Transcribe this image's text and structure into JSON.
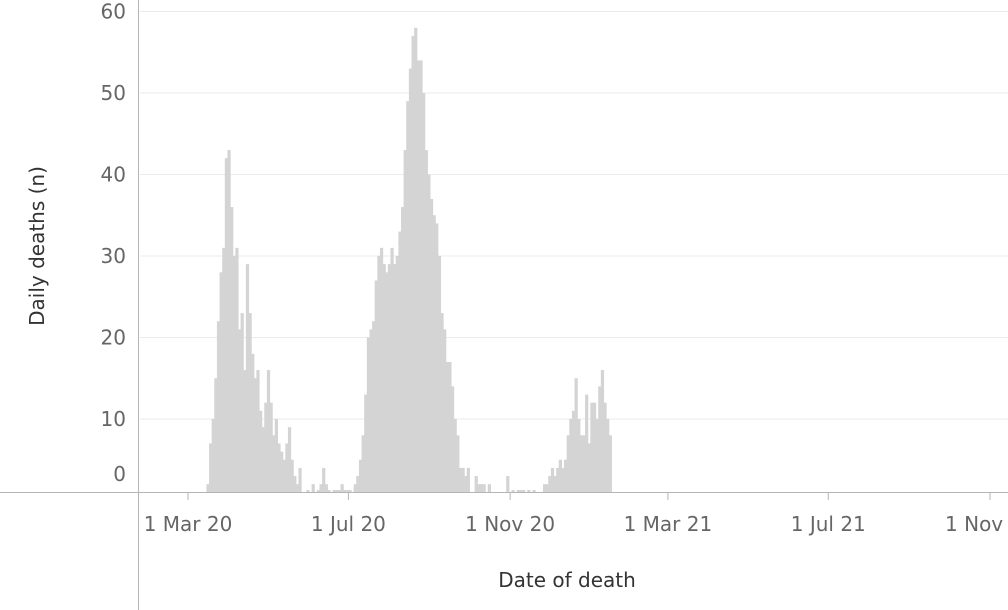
{
  "chart_data": {
    "type": "bar",
    "title": "",
    "xlabel": "Date of death",
    "ylabel": "Daily deaths (n)",
    "ylim": [
      0,
      60
    ],
    "y_ticks": [
      0,
      10,
      20,
      30,
      40,
      50,
      60
    ],
    "x_ticks": [
      {
        "date": "2020-03-01",
        "label": "1 Mar 20"
      },
      {
        "date": "2020-07-01",
        "label": "1 Jul 20"
      },
      {
        "date": "2020-11-01",
        "label": "1 Nov 20"
      },
      {
        "date": "2021-03-01",
        "label": "1 Mar 21"
      },
      {
        "date": "2021-07-01",
        "label": "1 Jul 21"
      },
      {
        "date": "2021-11-01",
        "label": "1 Nov 21"
      }
    ],
    "x_range": [
      "2020-02-01",
      "2021-12-01"
    ],
    "grid": "horizontal",
    "bar_color": "#d4d4d4",
    "series": [
      {
        "start_date": "2020-03-15",
        "interval_days": 2,
        "values": [
          2,
          7,
          10,
          15,
          22,
          28,
          31,
          42,
          43,
          36,
          30,
          31,
          21,
          23,
          16,
          29,
          23,
          18,
          15,
          16,
          11,
          9,
          12,
          16,
          12,
          8,
          10,
          7,
          6,
          5,
          7,
          9,
          5,
          3,
          2,
          4,
          1,
          1,
          0,
          1,
          2,
          1,
          0,
          2,
          4,
          2,
          0,
          1,
          0,
          0,
          0,
          2,
          0,
          0,
          0,
          1,
          2,
          3,
          5,
          8,
          13,
          20,
          21,
          22,
          27,
          30,
          31,
          29,
          28,
          29,
          31,
          29,
          30,
          33,
          36,
          43,
          49,
          53,
          57,
          58,
          54,
          54,
          50,
          43,
          40,
          37,
          35,
          34,
          30,
          23,
          21,
          17,
          17,
          14,
          10,
          8,
          4,
          4,
          3,
          4,
          1,
          1,
          3,
          2,
          2,
          2,
          1,
          2,
          1,
          1,
          1,
          1,
          1,
          1,
          3,
          1,
          0,
          1,
          0,
          0,
          0,
          1,
          0,
          1,
          0,
          1,
          1,
          1,
          2,
          2,
          3,
          4,
          3,
          4,
          5,
          4,
          5,
          8,
          10,
          11,
          15,
          10,
          8,
          8,
          13,
          7,
          12,
          12,
          10,
          14,
          16,
          12,
          10,
          8
        ]
      }
    ]
  }
}
